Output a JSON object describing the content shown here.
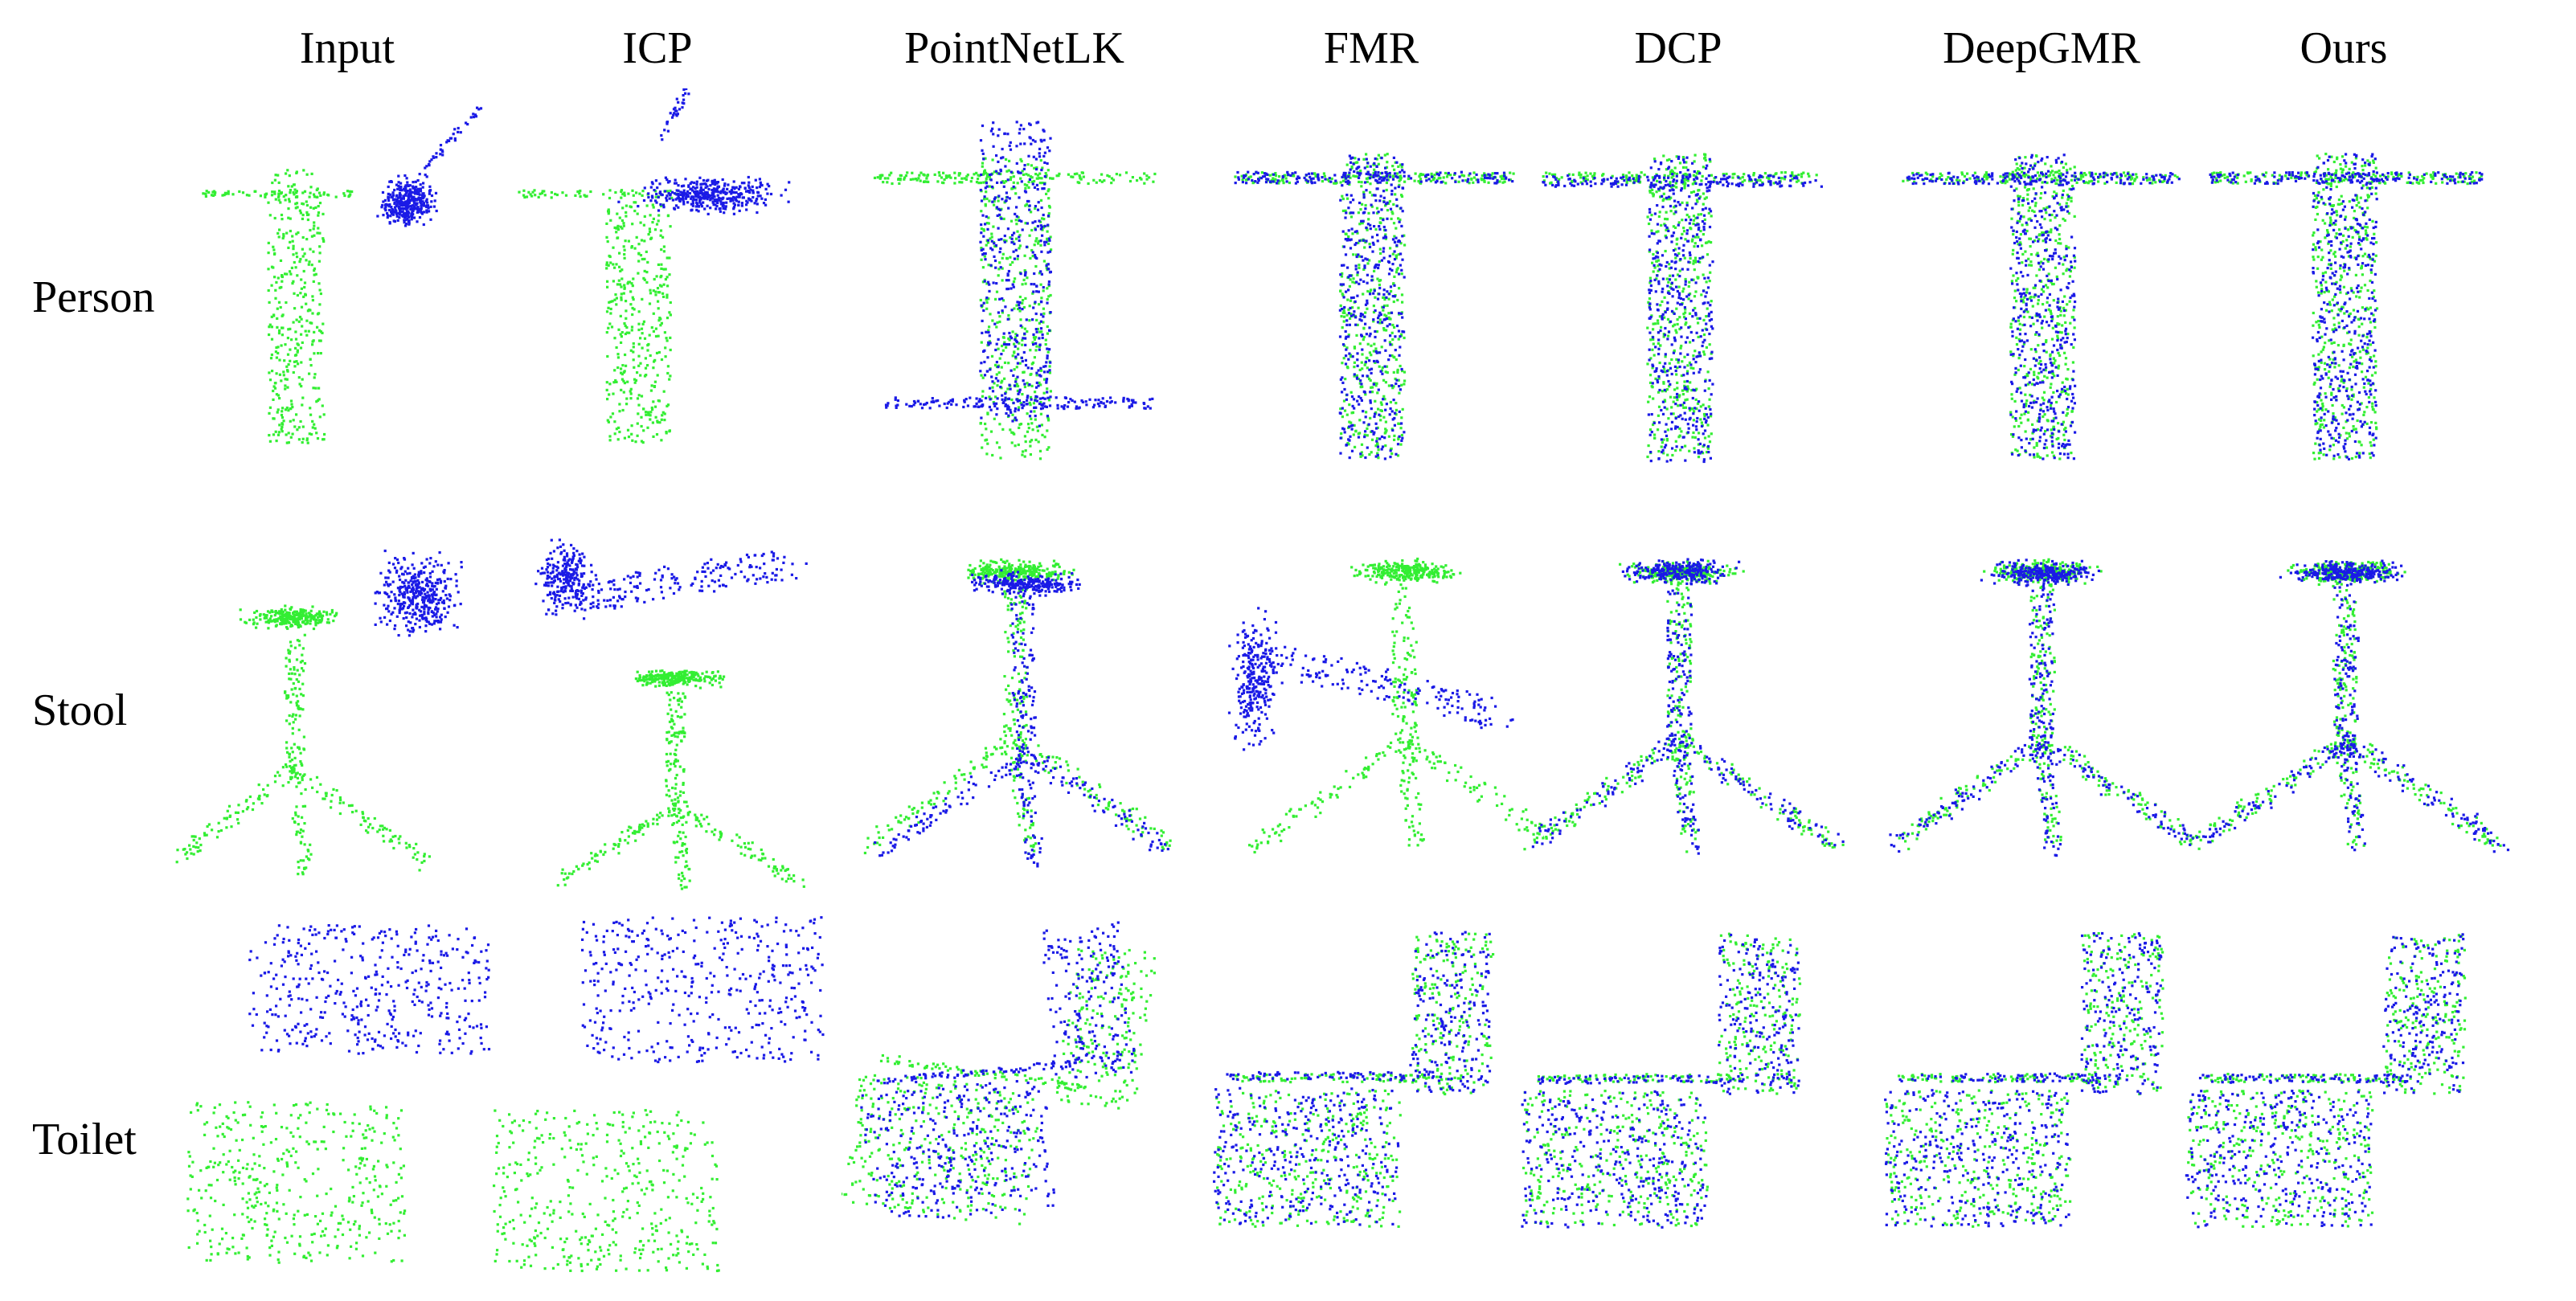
{
  "figure": {
    "columns": [
      "Input",
      "ICP",
      "PointNetLK",
      "FMR",
      "DCP",
      "DeepGMR",
      "Ours"
    ],
    "rows": [
      "Person",
      "Stool",
      "Toilet"
    ],
    "colors": {
      "source": "#1a1ae6",
      "target": "#33ee33",
      "background": "#ffffff"
    }
  }
}
